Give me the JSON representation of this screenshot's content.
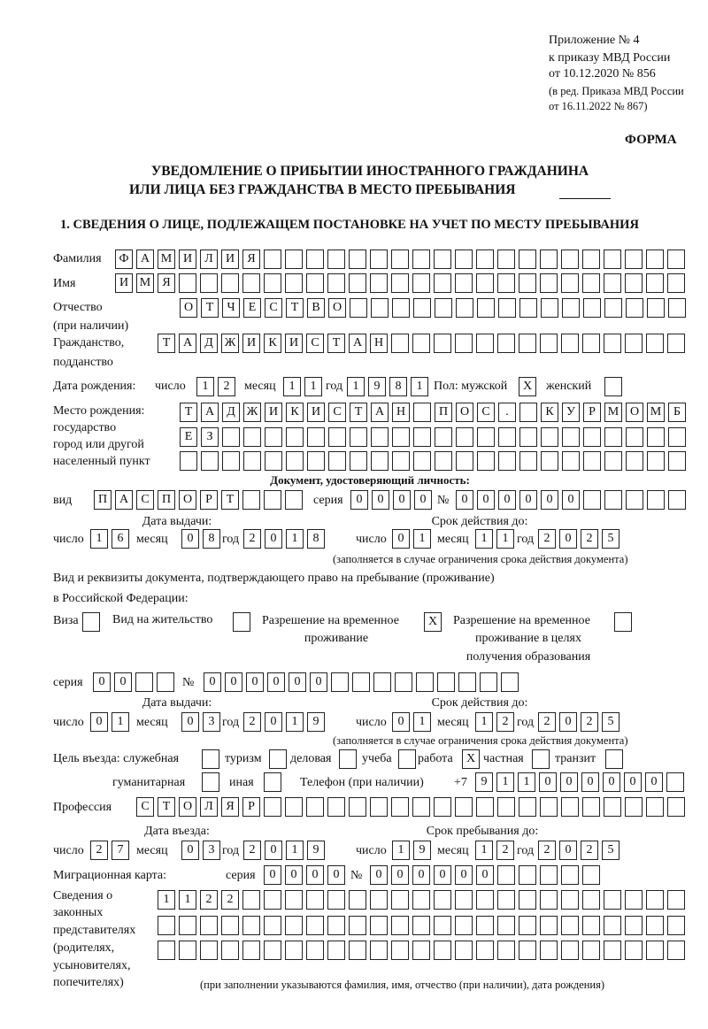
{
  "header": {
    "appendix": "Приложение № 4",
    "order": "к приказу МВД России",
    "order_date": "от 10.12.2020 № 856",
    "edition": "(в ред. Приказа МВД России",
    "edition_date": "от 16.11.2022 № 867)",
    "form_label": "ФОРМА"
  },
  "title": {
    "line1": "УВЕДОМЛЕНИЕ О ПРИБЫТИИ ИНОСТРАННОГО ГРАЖДАНИНА",
    "line2": "ИЛИ ЛИЦА БЕЗ ГРАЖДАНСТВА В МЕСТО ПРЕБЫВАНИЯ"
  },
  "section1_heading": "1. СВЕДЕНИЯ О ЛИЦЕ, ПОДЛЕЖАЩЕМ ПОСТАНОВКЕ НА УЧЕТ ПО МЕСТУ ПРЕБЫВАНИЯ",
  "labels": {
    "day": "число",
    "month": "месяц",
    "year": "год",
    "series": "серия",
    "number": "№",
    "validity_note": "(заполняется в случае ограничения срока действия документа)"
  },
  "surname": {
    "label": "Фамилия",
    "value": "ФАМИЛИЯ"
  },
  "name": {
    "label": "Имя",
    "value": "ИМЯ"
  },
  "patronymic": {
    "label": "Отчество",
    "label2": "(при наличии)",
    "value": "ОТЧЕСТВО"
  },
  "citizenship": {
    "label": "Гражданство,",
    "label2": "подданство",
    "value": "ТАДЖИКИСТАН"
  },
  "birth_date": {
    "label": "Дата рождения:",
    "day": "12",
    "month": "11",
    "year": "1981"
  },
  "sex": {
    "label_male": "Пол: мужской",
    "male": "X",
    "label_female": "женский",
    "female": ""
  },
  "birthplace": {
    "labels": [
      "Место рождения:",
      "государство",
      "город или другой",
      "населенный пункт"
    ],
    "line1": "ТАДЖИКИСТАН ПОС. КУРМОМБ",
    "line2": "ЕЗ",
    "line3": ""
  },
  "id_doc": {
    "heading": "Документ, удостоверяющий личность:",
    "type_label": "вид",
    "type": "ПАСПОРТ",
    "series": "0000",
    "number": "000000",
    "issue": {
      "label": "Дата выдачи:",
      "day": "16",
      "month": "08",
      "year": "2018"
    },
    "valid": {
      "label": "Срок действия до:",
      "day": "01",
      "month": "11",
      "year": "2025"
    }
  },
  "stay_doc": {
    "heading1": "Вид и реквизиты документа, подтверждающего право на пребывание (проживание)",
    "heading2": "в Российской Федерации:",
    "visa": {
      "label": "Виза",
      "checked": ""
    },
    "residence_permit": {
      "label": "Вид на жительство",
      "checked": ""
    },
    "temp_residence": {
      "label": "Разрешение на временное",
      "label2": "проживание",
      "checked": "X"
    },
    "temp_residence_edu": {
      "label": "Разрешение на временное",
      "label2": "проживание в целях",
      "label3": "получения образования",
      "checked": ""
    },
    "series": "00",
    "number": "000000",
    "issue": {
      "label": "Дата выдачи:",
      "day": "01",
      "month": "03",
      "year": "2019"
    },
    "valid": {
      "label": "Срок действия до:",
      "day": "01",
      "month": "12",
      "year": "2025"
    }
  },
  "purpose": {
    "label": "Цель въезда: служебная",
    "official": "",
    "tourism_label": "туризм",
    "tourism": "",
    "business_label": "деловая",
    "business": "",
    "study_label": "учеба",
    "study": "",
    "work_label": "работа",
    "work": "X",
    "private_label": "частная",
    "private": "",
    "transit_label": "транзит",
    "transit": "",
    "humanitarian_label": "гуманитарная",
    "humanitarian": "",
    "other_label": "иная",
    "other": ""
  },
  "phone": {
    "label": "Телефон (при наличии)",
    "prefix": "+7",
    "value": "911000000"
  },
  "profession": {
    "label": "Профессия",
    "value": "СТОЛЯР"
  },
  "entry_date": {
    "label": "Дата въезда:",
    "day": "27",
    "month": "03",
    "year": "2019"
  },
  "stay_until": {
    "label": "Срок пребывания до:",
    "day": "19",
    "month": "12",
    "year": "2025"
  },
  "migration_card": {
    "label": "Миграционная карта:",
    "series": "0000",
    "number": "000000"
  },
  "legal_reps": {
    "labels": [
      "Сведения о",
      "законных",
      "представителях",
      "(родителях,",
      "усыновителях,",
      "попечителях)"
    ],
    "line1": "1122",
    "line2": "",
    "line3": "",
    "note": "(при заполнении указываются фамилия, имя, отчество (при наличии), дата рождения)"
  }
}
